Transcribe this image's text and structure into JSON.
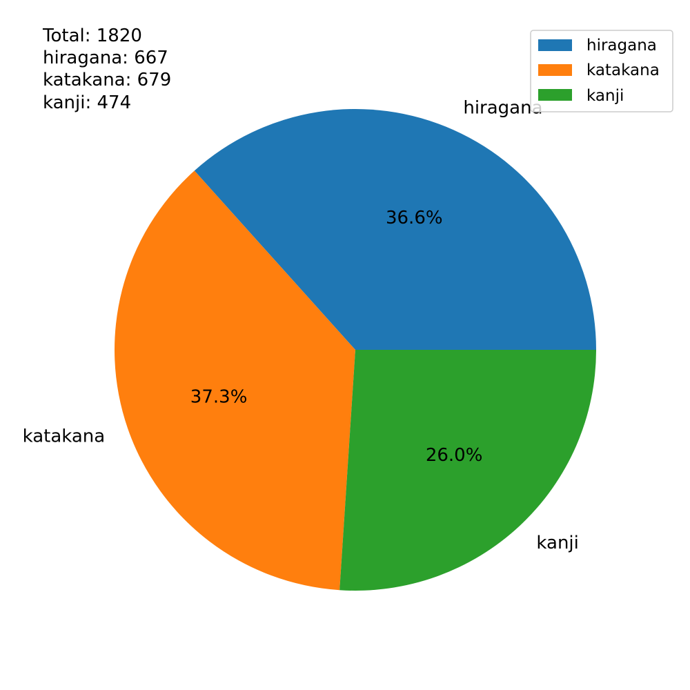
{
  "chart_data": {
    "type": "pie",
    "title": "",
    "categories": [
      "hiragana",
      "katakana",
      "kanji"
    ],
    "values": [
      667,
      679,
      474
    ],
    "percent_labels": [
      "36.6%",
      "37.3%",
      "26.0%"
    ],
    "colors": [
      "#1f77b4",
      "#ff7f0e",
      "#2ca02c"
    ],
    "start_angle_deg": 0,
    "direction": "counterclockwise",
    "legend": {
      "position": "top-right",
      "entries": [
        "hiragana",
        "katakana",
        "kanji"
      ]
    },
    "annotation": {
      "position": "top-left",
      "lines": [
        "Total: 1820",
        "hiragana: 667",
        "katakana: 679",
        "kanji: 474"
      ]
    }
  }
}
